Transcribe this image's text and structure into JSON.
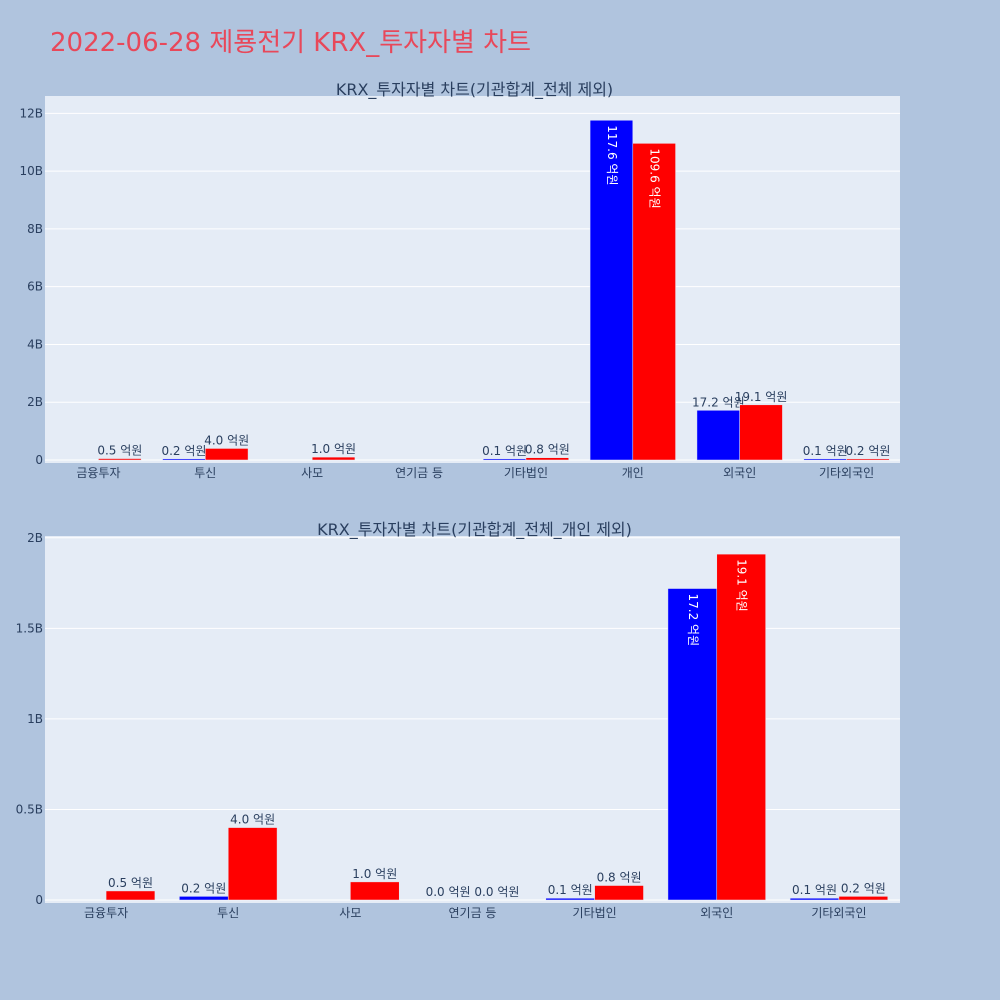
{
  "title": "2022-06-28 제룡전기 KRX_투자자별 차트",
  "chart_data": [
    {
      "type": "bar",
      "title": "KRX_투자자별 차트(기관합계_전체 제외)",
      "categories": [
        "금융투자",
        "투신",
        "사모",
        "연기금 등",
        "기타법인",
        "개인",
        "외국인",
        "기타외국인"
      ],
      "series": [
        {
          "color": "#0000ff",
          "values": [
            0,
            20000000,
            0,
            0,
            10000000,
            11760000000,
            1720000000,
            10000000
          ],
          "labels": [
            "",
            "0.2 억원",
            "",
            "",
            "0.1 억원",
            "117.6 억원",
            "17.2 억원",
            "0.1 억원"
          ]
        },
        {
          "color": "#ff0000",
          "values": [
            50000000,
            400000000,
            100000000,
            0,
            80000000,
            10960000000,
            1910000000,
            20000000
          ],
          "labels": [
            "0.5 억원",
            "4.0 억원",
            "1.0 억원",
            "",
            "0.8 억원",
            "109.6 억원",
            "19.1 억원",
            "0.2 억원"
          ]
        }
      ],
      "ylim": [
        0,
        12600000000
      ],
      "yticks": [
        {
          "v": 0,
          "t": "0"
        },
        {
          "v": 2000000000,
          "t": "2B"
        },
        {
          "v": 4000000000,
          "t": "4B"
        },
        {
          "v": 6000000000,
          "t": "6B"
        },
        {
          "v": 8000000000,
          "t": "8B"
        },
        {
          "v": 10000000000,
          "t": "10B"
        },
        {
          "v": 12000000000,
          "t": "12B"
        }
      ],
      "grid": true
    },
    {
      "type": "bar",
      "title": "KRX_투자자별 차트(기관합계_전체_개인 제외)",
      "categories": [
        "금융투자",
        "투신",
        "사모",
        "연기금 등",
        "기타법인",
        "외국인",
        "기타외국인"
      ],
      "series": [
        {
          "color": "#0000ff",
          "values": [
            0,
            20000000,
            0,
            0,
            10000000,
            1720000000,
            10000000
          ],
          "labels": [
            "",
            "0.2 억원",
            "",
            "0.0 억원",
            "0.1 억원",
            "17.2 억원",
            "0.1 억원"
          ]
        },
        {
          "color": "#ff0000",
          "values": [
            50000000,
            400000000,
            100000000,
            0,
            80000000,
            1910000000,
            20000000
          ],
          "labels": [
            "0.5 억원",
            "4.0 억원",
            "1.0 억원",
            "0.0 억원",
            "0.8 억원",
            "19.1 억원",
            "0.2 억원"
          ]
        }
      ],
      "ylim": [
        0,
        2010000000
      ],
      "yticks": [
        {
          "v": 0,
          "t": "0"
        },
        {
          "v": 500000000,
          "t": "0.5B"
        },
        {
          "v": 1000000000,
          "t": "1B"
        },
        {
          "v": 1500000000,
          "t": "1.5B"
        },
        {
          "v": 2000000000,
          "t": "2B"
        }
      ],
      "grid": true
    }
  ]
}
